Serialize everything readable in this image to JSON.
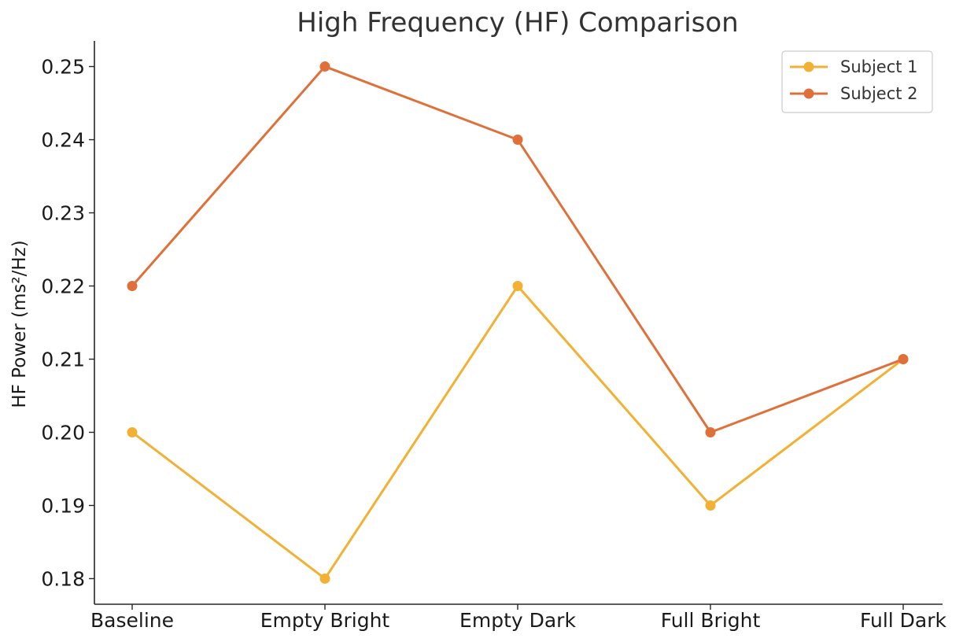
{
  "chart_data": {
    "type": "line",
    "title": "High Frequency (HF) Comparison",
    "xlabel": "",
    "ylabel": "HF Power (ms²/Hz)",
    "categories": [
      "Baseline",
      "Empty Bright",
      "Empty Dark",
      "Full Bright",
      "Full Dark"
    ],
    "series": [
      {
        "name": "Subject 1",
        "values": [
          0.2,
          0.18,
          0.22,
          0.19,
          0.21
        ],
        "color": "#F2B135"
      },
      {
        "name": "Subject 2",
        "values": [
          0.22,
          0.25,
          0.24,
          0.2,
          0.21
        ],
        "color": "#E0703A"
      }
    ],
    "ylim": [
      0.1765,
      0.2535
    ],
    "yticks": [
      "0.18",
      "0.19",
      "0.20",
      "0.21",
      "0.22",
      "0.23",
      "0.24",
      "0.25"
    ],
    "grid": false,
    "legend": "top-right",
    "markers": "circle"
  }
}
